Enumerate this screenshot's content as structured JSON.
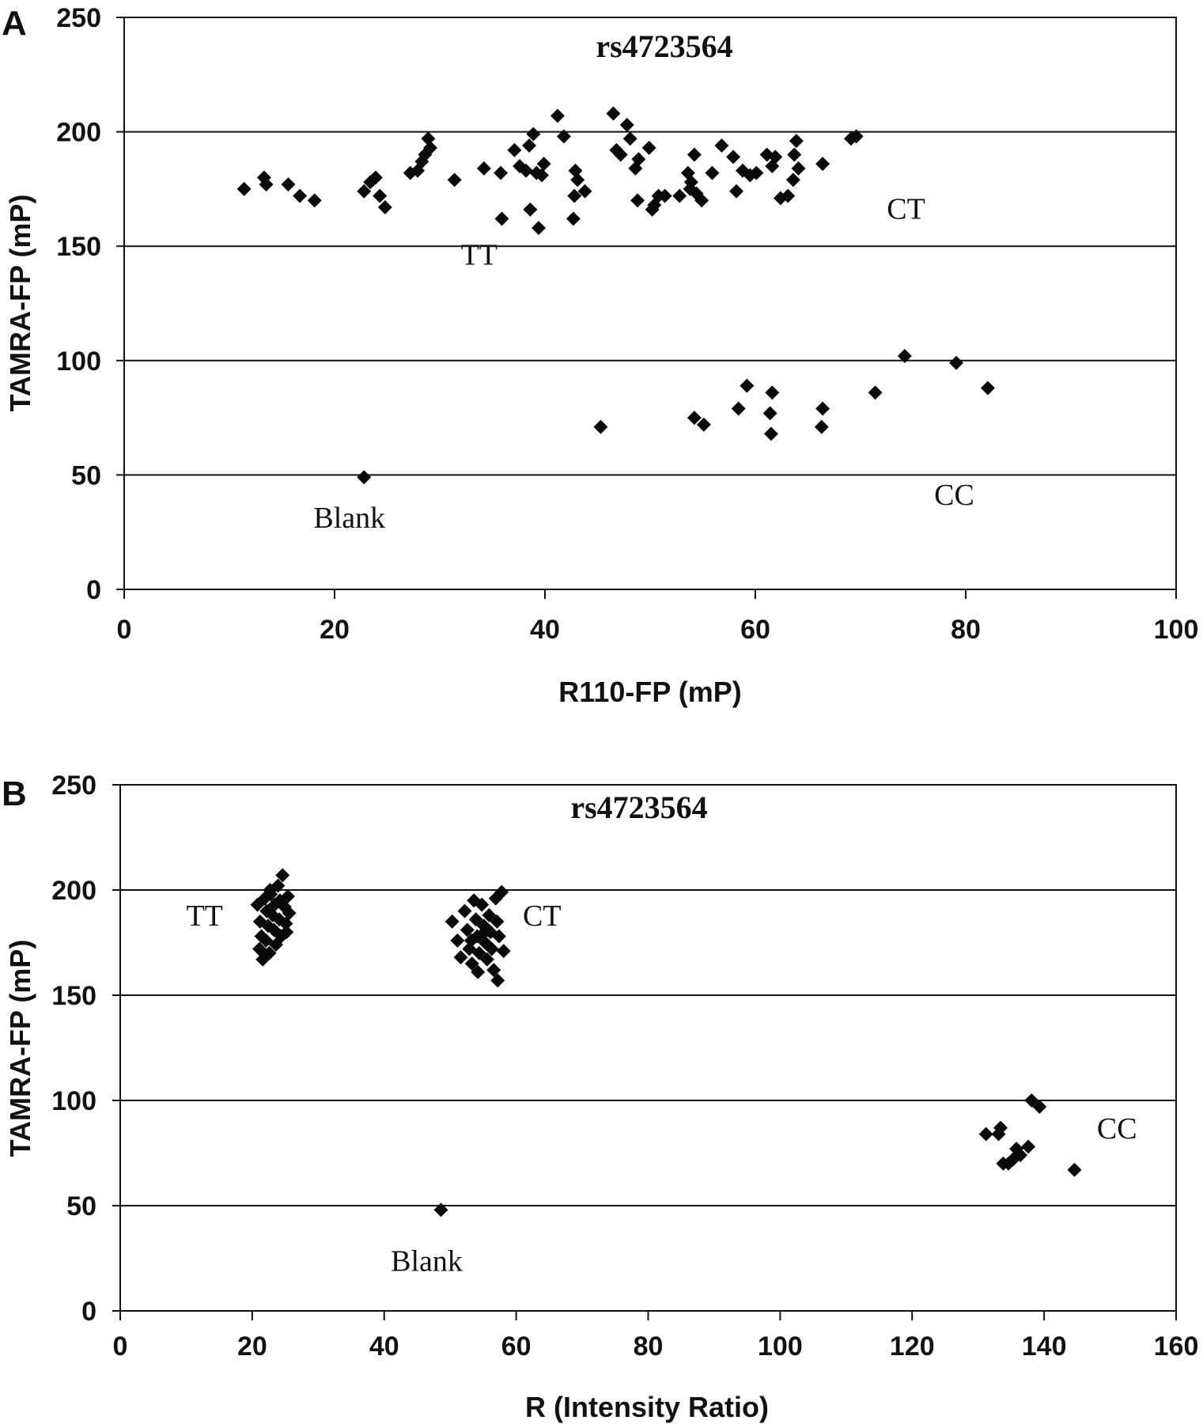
{
  "chart_data": [
    {
      "type": "scatter",
      "panel_label": "A",
      "title": "rs4723564",
      "xlabel": "R110-FP (mP)",
      "ylabel": "TAMRA-FP (mP)",
      "xlim": [
        0,
        100
      ],
      "ylim": [
        0,
        250
      ],
      "xticks": [
        "0",
        "20",
        "40",
        "60",
        "80",
        "100"
      ],
      "yticks": [
        "0",
        "50",
        "100",
        "150",
        "200",
        "250"
      ],
      "grid": "horizontal",
      "annotations": [
        {
          "text": "TT",
          "x": 32,
          "y": 142
        },
        {
          "text": "CT",
          "x": 72.5,
          "y": 162
        },
        {
          "text": "CC",
          "x": 77,
          "y": 37
        },
        {
          "text": "Blank",
          "x": 18,
          "y": 27
        }
      ],
      "points": [
        [
          11.4,
          175
        ],
        [
          13.3,
          180
        ],
        [
          13.5,
          177
        ],
        [
          15.6,
          177
        ],
        [
          16.7,
          172
        ],
        [
          18.1,
          170
        ],
        [
          22.8,
          174
        ],
        [
          23.4,
          178
        ],
        [
          23.9,
          180
        ],
        [
          24.3,
          172
        ],
        [
          24.8,
          167
        ],
        [
          27.2,
          182
        ],
        [
          27.9,
          183
        ],
        [
          28.3,
          187
        ],
        [
          28.6,
          190
        ],
        [
          28.9,
          197
        ],
        [
          29.1,
          193
        ],
        [
          31.4,
          179
        ],
        [
          34.2,
          184
        ],
        [
          35.8,
          182
        ],
        [
          35.9,
          162
        ],
        [
          37.1,
          192
        ],
        [
          37.6,
          185
        ],
        [
          38.2,
          183
        ],
        [
          38.5,
          194
        ],
        [
          38.9,
          199
        ],
        [
          38.6,
          166
        ],
        [
          39.2,
          182
        ],
        [
          39.4,
          158
        ],
        [
          39.7,
          181
        ],
        [
          39.9,
          186
        ],
        [
          41.2,
          207
        ],
        [
          41.8,
          198
        ],
        [
          42.7,
          162
        ],
        [
          42.8,
          172
        ],
        [
          42.9,
          183
        ],
        [
          43.1,
          179
        ],
        [
          43.8,
          174
        ],
        [
          46.5,
          208
        ],
        [
          46.8,
          192
        ],
        [
          47.2,
          190
        ],
        [
          47.8,
          203
        ],
        [
          48.1,
          197
        ],
        [
          48.6,
          184
        ],
        [
          48.9,
          188
        ],
        [
          48.8,
          170
        ],
        [
          49.9,
          193
        ],
        [
          50.2,
          166
        ],
        [
          50.4,
          168
        ],
        [
          50.8,
          172
        ],
        [
          51.4,
          172
        ],
        [
          52.8,
          172
        ],
        [
          53.6,
          182
        ],
        [
          53.8,
          175
        ],
        [
          53.9,
          178
        ],
        [
          54.2,
          190
        ],
        [
          54.4,
          173
        ],
        [
          54.9,
          170
        ],
        [
          55.9,
          182
        ],
        [
          56.8,
          194
        ],
        [
          57.9,
          189
        ],
        [
          58.2,
          174
        ],
        [
          58.8,
          183
        ],
        [
          59.5,
          181
        ],
        [
          60.1,
          182
        ],
        [
          61.1,
          190
        ],
        [
          61.6,
          185
        ],
        [
          61.9,
          189
        ],
        [
          62.4,
          171
        ],
        [
          63.1,
          172
        ],
        [
          63.6,
          179
        ],
        [
          63.7,
          190
        ],
        [
          63.9,
          196
        ],
        [
          64.1,
          184
        ],
        [
          66.4,
          186
        ],
        [
          69.1,
          197
        ],
        [
          69.6,
          198
        ],
        [
          22.8,
          49
        ],
        [
          45.3,
          71
        ],
        [
          54.2,
          75
        ],
        [
          55.1,
          72
        ],
        [
          58.4,
          79
        ],
        [
          59.2,
          89
        ],
        [
          61.4,
          77
        ],
        [
          61.6,
          86
        ],
        [
          61.5,
          68
        ],
        [
          66.4,
          79
        ],
        [
          66.3,
          71
        ],
        [
          71.4,
          86
        ],
        [
          74.2,
          102
        ],
        [
          79.1,
          99
        ],
        [
          82.1,
          88
        ]
      ]
    },
    {
      "type": "scatter",
      "panel_label": "B",
      "title": "rs4723564",
      "xlabel": "R (Intensity Ratio)",
      "ylabel": "TAMRA-FP (mP)",
      "xlim": [
        0,
        160
      ],
      "ylim": [
        0,
        250
      ],
      "xticks": [
        "0",
        "20",
        "40",
        "60",
        "80",
        "100",
        "120",
        "140",
        "160"
      ],
      "yticks": [
        "0",
        "50",
        "100",
        "150",
        "200",
        "250"
      ],
      "grid": "horizontal",
      "annotations": [
        {
          "text": "TT",
          "x": 10,
          "y": 183
        },
        {
          "text": "CT",
          "x": 61,
          "y": 183
        },
        {
          "text": "CC",
          "x": 148,
          "y": 82
        },
        {
          "text": "Blank",
          "x": 41,
          "y": 19
        }
      ],
      "points": [
        [
          20.8,
          193
        ],
        [
          21.2,
          185
        ],
        [
          21.4,
          178
        ],
        [
          21.1,
          172
        ],
        [
          21.6,
          167
        ],
        [
          21.9,
          196
        ],
        [
          22.2,
          190
        ],
        [
          22.4,
          183
        ],
        [
          22.1,
          176
        ],
        [
          22.6,
          170
        ],
        [
          22.8,
          198
        ],
        [
          23.1,
          188
        ],
        [
          23.3,
          181
        ],
        [
          23.6,
          174
        ],
        [
          23.9,
          202
        ],
        [
          24.2,
          195
        ],
        [
          24.1,
          186
        ],
        [
          24.4,
          178
        ],
        [
          24.6,
          207
        ],
        [
          24.9,
          192
        ],
        [
          25.1,
          184
        ],
        [
          25.2,
          180
        ],
        [
          25.4,
          197
        ],
        [
          25.6,
          189
        ],
        [
          22.7,
          200
        ],
        [
          23.4,
          193
        ],
        [
          50.3,
          185
        ],
        [
          51.1,
          176
        ],
        [
          51.6,
          168
        ],
        [
          52.2,
          190
        ],
        [
          52.6,
          181
        ],
        [
          52.9,
          172
        ],
        [
          53.3,
          165
        ],
        [
          53.6,
          195
        ],
        [
          53.9,
          186
        ],
        [
          54.1,
          178
        ],
        [
          54.4,
          170
        ],
        [
          54.2,
          161
        ],
        [
          54.8,
          193
        ],
        [
          55.1,
          183
        ],
        [
          55.3,
          175
        ],
        [
          55.6,
          167
        ],
        [
          55.9,
          188
        ],
        [
          56.1,
          180
        ],
        [
          56.3,
          172
        ],
        [
          56.6,
          162
        ],
        [
          56.9,
          196
        ],
        [
          57.1,
          185
        ],
        [
          57.2,
          157
        ],
        [
          57.4,
          178
        ],
        [
          57.8,
          199
        ],
        [
          58.1,
          171
        ],
        [
          55.2,
          180
        ],
        [
          53.2,
          176
        ],
        [
          48.6,
          48
        ],
        [
          131.2,
          84
        ],
        [
          133.1,
          84
        ],
        [
          133.4,
          87
        ],
        [
          133.8,
          70
        ],
        [
          134.6,
          70
        ],
        [
          135.3,
          72
        ],
        [
          135.8,
          77
        ],
        [
          136.4,
          74
        ],
        [
          137.6,
          78
        ],
        [
          138.1,
          100
        ],
        [
          139.3,
          97
        ],
        [
          144.6,
          67
        ]
      ]
    }
  ]
}
